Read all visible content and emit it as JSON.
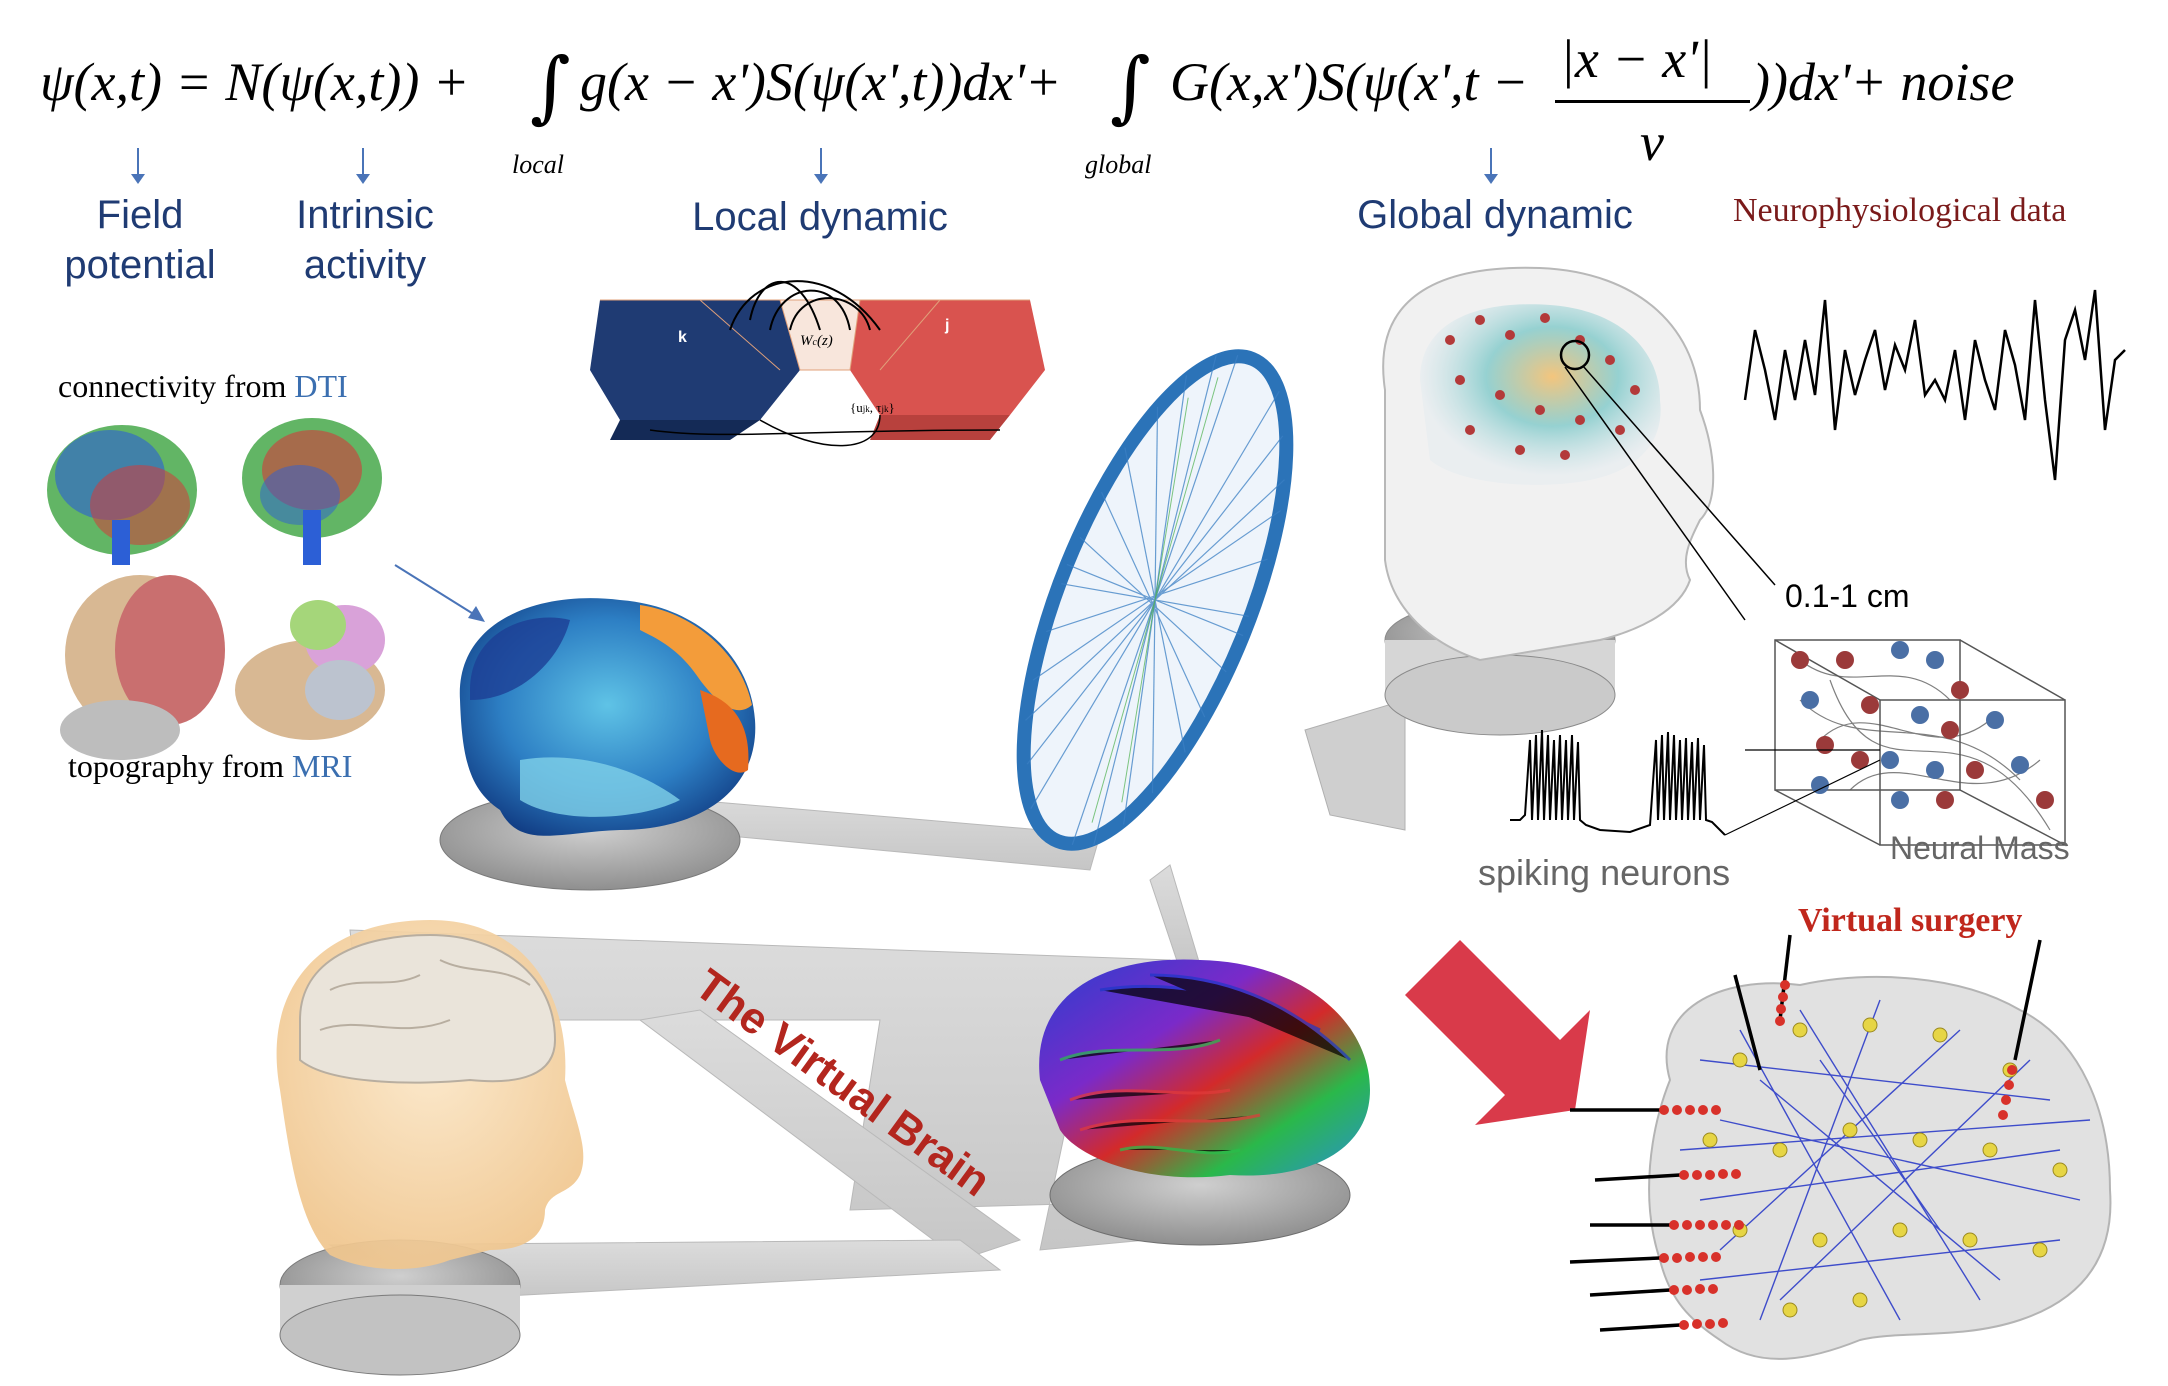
{
  "equation": {
    "lhs": "ψ(x,t) = N(ψ(x,t)) +",
    "local_term": "g(x − x')S(ψ(x',t))dx'+",
    "global_term_a": "G(x,x')S(ψ(x',t −",
    "fraction_num": "|x − x'|",
    "fraction_den": "v",
    "global_term_b": "))dx'+ noise",
    "sub_local": "local",
    "sub_global": "global"
  },
  "terms": {
    "field_potential": "Field\npotential",
    "intrinsic_activity": "Intrinsic\nactivity",
    "local_dynamic": "Local dynamic",
    "global_dynamic": "Global dynamic"
  },
  "neurophysiological": "Neurophysiological data",
  "connectivity": {
    "prefix": "connectivity from ",
    "highlight": "DTI"
  },
  "topography": {
    "prefix": "topography from ",
    "highlight": "MRI"
  },
  "scale_label": "0.1-1 cm",
  "spiking_label": "spiking neurons",
  "neural_mass_label": "Neural Mass",
  "virtual_surgery": "Virtual surgery",
  "center_title": "The Virtual Brain",
  "mesh_labels": {
    "k": "k",
    "j": "j",
    "w": "W",
    "w_sub": "c",
    "w_arg": "(z)",
    "conn": "{u",
    "conn_sub": "jk",
    "conn_mid": ", τ",
    "conn_end": "}"
  },
  "colors": {
    "term_blue": "#1f3b73",
    "accent_red": "#b3261e",
    "arrow_red": "#d93a4a",
    "mesh_blue": "#1f3b73",
    "mesh_red": "#d9534f"
  }
}
